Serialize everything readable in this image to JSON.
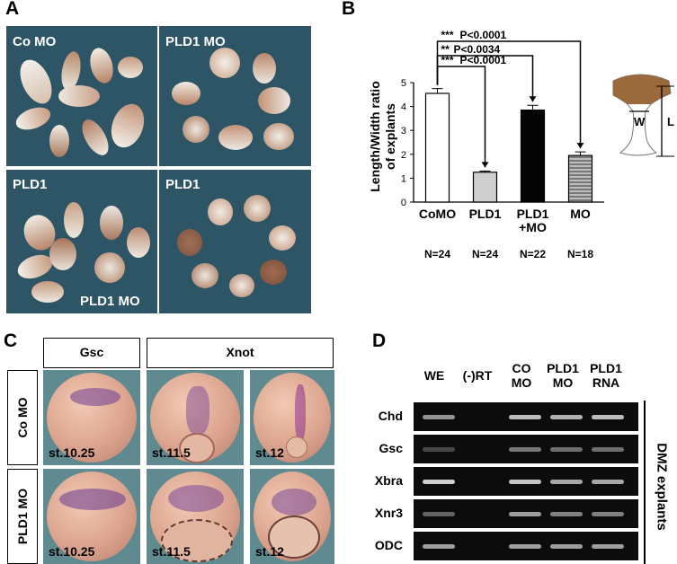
{
  "panels": {
    "a": "A",
    "b": "B",
    "c": "C",
    "d": "D"
  },
  "panel_a": {
    "labels": [
      "Co MO",
      "PLD1 MO",
      "PLD1",
      "PLD1"
    ],
    "overlay_label": "PLD1 MO"
  },
  "chart_data": {
    "type": "bar",
    "categories": [
      "CoMO",
      "PLD1",
      "PLD1\n+MO",
      "MO"
    ],
    "category_lines": [
      [
        "CoMO"
      ],
      [
        "PLD1"
      ],
      [
        "PLD1",
        "+MO"
      ],
      [
        "MO"
      ]
    ],
    "values": [
      4.55,
      1.25,
      3.85,
      1.95
    ],
    "errors": [
      0.2,
      0.05,
      0.2,
      0.15
    ],
    "fills": [
      "white",
      "light-gray",
      "black",
      "striped-gray"
    ],
    "n_labels": [
      "N=24",
      "N=24",
      "N=22",
      "N=18"
    ],
    "ylabel": "Length/Width ratio of explants",
    "ylabel_lines": [
      "Length/Width ratio",
      "of explants"
    ],
    "ylim": [
      0,
      5
    ],
    "yticks": [
      "0",
      "1",
      "2",
      "3",
      "4",
      "5"
    ],
    "significance": [
      {
        "stars": "***",
        "label": "P<0.0001",
        "from": "CoMO",
        "to": "PLD1"
      },
      {
        "stars": "**",
        "label": "P<0.0034",
        "from": "CoMO",
        "to": "PLD1\n+MO"
      },
      {
        "stars": "***",
        "label": "P<0.0001",
        "from": "CoMO",
        "to": "MO"
      }
    ]
  },
  "explant_diagram": {
    "width_label": "W",
    "length_label": "L"
  },
  "panel_c": {
    "column_headers": [
      "Gsc",
      "Xnot"
    ],
    "row_headers": [
      "Co MO",
      "PLD1 MO"
    ],
    "stages": [
      [
        "st.10.25",
        "st.11.5",
        "st.12"
      ],
      [
        "st.10.25",
        "st.11.5",
        "st.12"
      ]
    ]
  },
  "panel_d": {
    "lanes": [
      [
        "WE"
      ],
      [
        "(-)RT"
      ],
      [
        "CO",
        "MO"
      ],
      [
        "PLD1",
        "MO"
      ],
      [
        "PLD1",
        "RNA"
      ]
    ],
    "genes": [
      "Chd",
      "Gsc",
      "Xbra",
      "Xnr3",
      "ODC"
    ],
    "side_label": "DMZ explants"
  }
}
